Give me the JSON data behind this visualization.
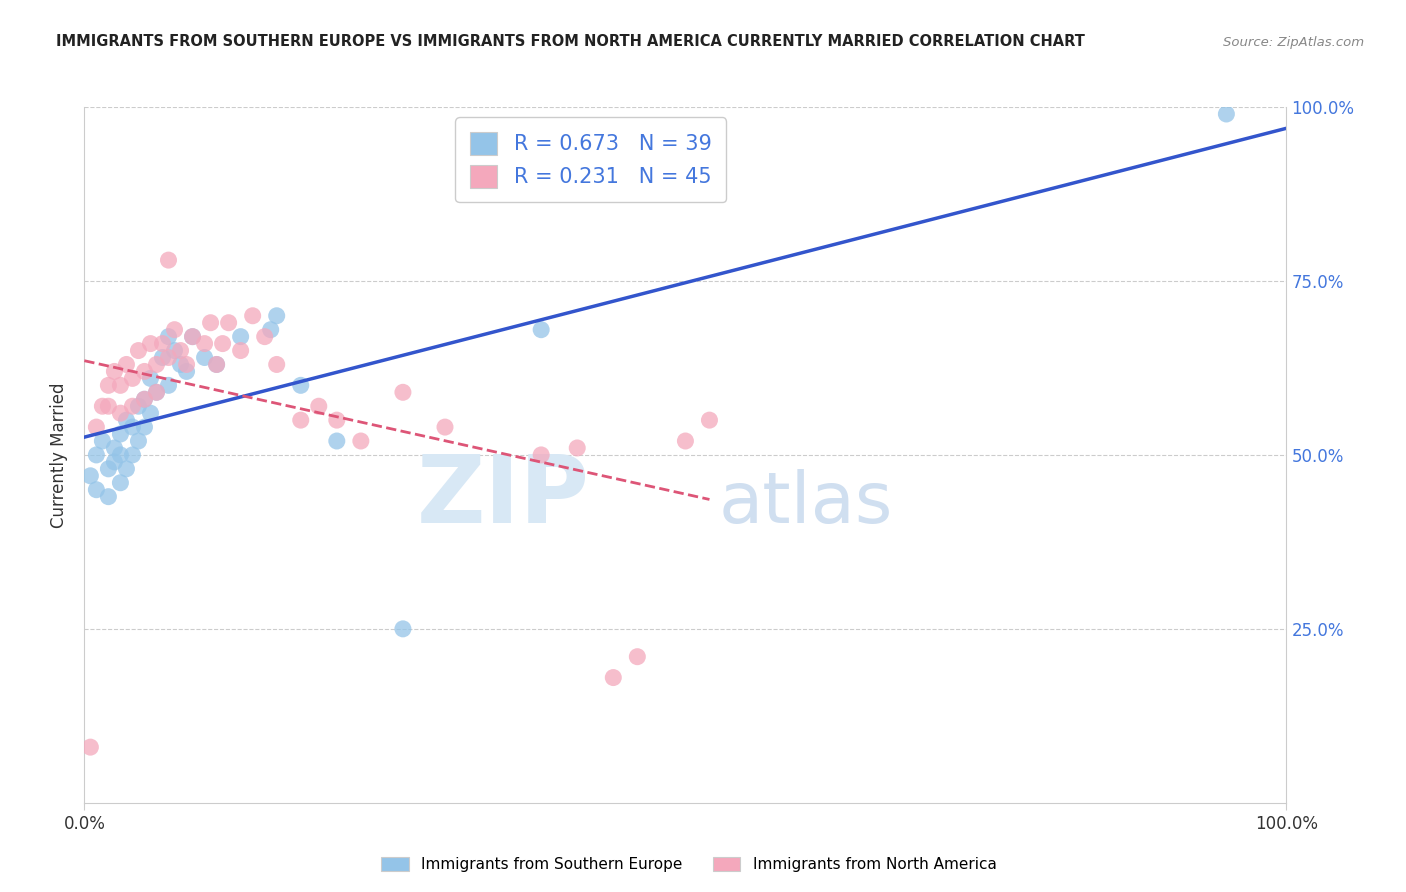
{
  "title": "IMMIGRANTS FROM SOUTHERN EUROPE VS IMMIGRANTS FROM NORTH AMERICA CURRENTLY MARRIED CORRELATION CHART",
  "source": "Source: ZipAtlas.com",
  "ylabel": "Currently Married",
  "legend_labels": [
    "Immigrants from Southern Europe",
    "Immigrants from North America"
  ],
  "legend_R": [
    0.673,
    0.231
  ],
  "legend_N": [
    39,
    45
  ],
  "blue_color": "#94c4e8",
  "pink_color": "#f4a8bc",
  "blue_line_color": "#3355cc",
  "pink_line_color": "#dd5577",
  "watermark_zip": "ZIP",
  "watermark_atlas": "atlas",
  "right_axis_tick_color": "#4477dd",
  "xlim": [
    0.0,
    1.0
  ],
  "ylim": [
    0.0,
    1.0
  ],
  "blue_scatter_x": [
    0.005,
    0.01,
    0.01,
    0.015,
    0.02,
    0.02,
    0.025,
    0.025,
    0.03,
    0.03,
    0.03,
    0.035,
    0.035,
    0.04,
    0.04,
    0.045,
    0.045,
    0.05,
    0.05,
    0.055,
    0.055,
    0.06,
    0.065,
    0.07,
    0.07,
    0.075,
    0.08,
    0.085,
    0.09,
    0.1,
    0.11,
    0.13,
    0.155,
    0.16,
    0.18,
    0.21,
    0.265,
    0.38,
    0.95
  ],
  "blue_scatter_y": [
    0.47,
    0.5,
    0.45,
    0.52,
    0.48,
    0.44,
    0.51,
    0.49,
    0.53,
    0.5,
    0.46,
    0.55,
    0.48,
    0.54,
    0.5,
    0.57,
    0.52,
    0.58,
    0.54,
    0.61,
    0.56,
    0.59,
    0.64,
    0.67,
    0.6,
    0.65,
    0.63,
    0.62,
    0.67,
    0.64,
    0.63,
    0.67,
    0.68,
    0.7,
    0.6,
    0.52,
    0.25,
    0.68,
    0.99
  ],
  "pink_scatter_x": [
    0.005,
    0.01,
    0.015,
    0.02,
    0.02,
    0.025,
    0.03,
    0.03,
    0.035,
    0.04,
    0.04,
    0.045,
    0.05,
    0.05,
    0.055,
    0.06,
    0.06,
    0.065,
    0.07,
    0.075,
    0.08,
    0.085,
    0.09,
    0.1,
    0.105,
    0.11,
    0.115,
    0.12,
    0.13,
    0.14,
    0.15,
    0.16,
    0.18,
    0.195,
    0.21,
    0.23,
    0.265,
    0.3,
    0.38,
    0.41,
    0.44,
    0.46,
    0.5,
    0.52,
    0.07
  ],
  "pink_scatter_y": [
    0.08,
    0.54,
    0.57,
    0.6,
    0.57,
    0.62,
    0.6,
    0.56,
    0.63,
    0.61,
    0.57,
    0.65,
    0.62,
    0.58,
    0.66,
    0.63,
    0.59,
    0.66,
    0.64,
    0.68,
    0.65,
    0.63,
    0.67,
    0.66,
    0.69,
    0.63,
    0.66,
    0.69,
    0.65,
    0.7,
    0.67,
    0.63,
    0.55,
    0.57,
    0.55,
    0.52,
    0.59,
    0.54,
    0.5,
    0.51,
    0.18,
    0.21,
    0.52,
    0.55,
    0.78
  ]
}
